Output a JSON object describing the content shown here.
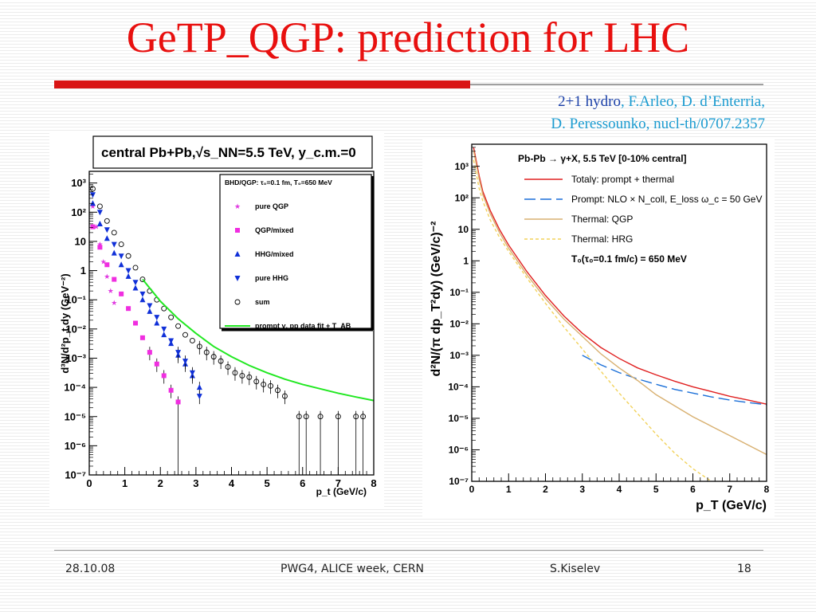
{
  "slide": {
    "title": "GeTP_QGP: prediction for LHC",
    "citation_line1_a": "2+1 hydro",
    "citation_line1_b": ", F.Arleo, D. d’Enterria,",
    "citation_line2": "D. Peressounko, nucl-th/0707.2357"
  },
  "footer": {
    "date": "28.10.08",
    "event": "PWG4, ALICE week, CERN",
    "author": "S.Kiselev",
    "page": "18"
  },
  "chart_data": [
    {
      "type": "scatter",
      "title": "central Pb+Pb,√s_NN=5.5 TeV, y_c.m.=0",
      "xlabel": "p_t (GeV/c)",
      "ylabel": "d³N/d²p_t dy (GeV⁻²)",
      "x_ticks": [
        "0",
        "1",
        "2",
        "3",
        "4",
        "5",
        "6",
        "7",
        "8"
      ],
      "y_ticks": [
        "10⁻⁷",
        "10⁻⁶",
        "10⁻⁵",
        "10⁻⁴",
        "10⁻³",
        "10⁻²",
        "10⁻¹",
        "1",
        "10",
        "10²",
        "10³"
      ],
      "xlim": [
        0,
        8
      ],
      "ylim_log10": [
        -7,
        3.4
      ],
      "yscale": "log",
      "legend_position": "top-right",
      "legend_header": "BHD/QGP: τ₀=0.1 fm, T₀=650 MeV",
      "colors": {
        "pure_qgp": "#e03ae0",
        "qgp_mixed": "#f02ee0",
        "hhg_mixed": "#1030d8",
        "pure_hhg": "#1030d8",
        "sum": "#000000",
        "prompt": "#22e822"
      },
      "series": [
        {
          "name": "pure QGP",
          "marker": "star",
          "x": [
            0.1,
            0.2,
            0.3,
            0.4,
            0.5,
            0.6,
            0.7
          ],
          "log10y": [
            2.2,
            1.5,
            0.9,
            0.3,
            -0.2,
            -0.7,
            -1.1
          ]
        },
        {
          "name": "QGP/mixed",
          "marker": "square",
          "x": [
            0.1,
            0.3,
            0.5,
            0.7,
            0.9,
            1.1,
            1.3,
            1.5,
            1.7,
            1.9,
            2.1,
            2.3,
            2.5
          ],
          "log10y": [
            1.5,
            0.8,
            0.2,
            -0.3,
            -0.8,
            -1.3,
            -1.8,
            -2.3,
            -2.8,
            -3.2,
            -3.6,
            -4.1,
            -4.5
          ]
        },
        {
          "name": "HHG/mixed",
          "marker": "triangle-up",
          "x": [
            0.1,
            0.3,
            0.5,
            0.7,
            0.9,
            1.1,
            1.3,
            1.5,
            1.7,
            1.9,
            2.1,
            2.3,
            2.5,
            2.7,
            2.9,
            3.1
          ],
          "log10y": [
            2.3,
            1.6,
            1.1,
            0.6,
            0.2,
            -0.2,
            -0.6,
            -1.0,
            -1.4,
            -1.8,
            -2.2,
            -2.5,
            -2.9,
            -3.2,
            -3.6,
            -4.0
          ]
        },
        {
          "name": "pure HHG",
          "marker": "triangle-down",
          "x": [
            0.1,
            0.3,
            0.5,
            0.7,
            0.9,
            1.1,
            1.3,
            1.5,
            1.7,
            1.9,
            2.1,
            2.3,
            2.5,
            2.7,
            2.9,
            3.1
          ],
          "log10y": [
            2.6,
            2.0,
            1.4,
            0.9,
            0.5,
            0.0,
            -0.4,
            -0.8,
            -1.2,
            -1.6,
            -2.0,
            -2.4,
            -2.8,
            -3.1,
            -3.5,
            -4.3
          ]
        },
        {
          "name": "sum",
          "marker": "circle",
          "x": [
            0.1,
            0.3,
            0.5,
            0.7,
            0.9,
            1.1,
            1.3,
            1.5,
            1.7,
            1.9,
            2.1,
            2.3,
            2.5,
            2.7,
            2.9,
            3.1,
            3.3,
            3.5,
            3.7,
            3.9,
            4.1,
            4.3,
            4.5,
            4.7,
            4.9,
            5.1,
            5.3,
            5.5,
            5.9,
            6.1,
            6.5,
            7.0,
            7.5,
            7.7
          ],
          "log10y": [
            2.8,
            2.2,
            1.7,
            1.3,
            0.9,
            0.5,
            0.1,
            -0.3,
            -0.7,
            -1.0,
            -1.3,
            -1.6,
            -1.9,
            -2.2,
            -2.4,
            -2.6,
            -2.8,
            -2.95,
            -3.1,
            -3.3,
            -3.5,
            -3.6,
            -3.65,
            -3.8,
            -3.9,
            -3.95,
            -4.1,
            -4.3,
            -5.0,
            -5.0,
            -5.0,
            -5.0,
            -5.0,
            -5.0
          ]
        },
        {
          "name": "prompt γ, pp data fit + T_AB",
          "type": "line",
          "x": [
            1.5,
            2,
            2.5,
            3,
            3.5,
            4,
            4.5,
            5,
            5.5,
            6,
            6.5,
            7,
            7.5,
            8
          ],
          "log10y": [
            -0.3,
            -1.05,
            -1.65,
            -2.15,
            -2.6,
            -2.95,
            -3.25,
            -3.5,
            -3.72,
            -3.9,
            -4.05,
            -4.2,
            -4.33,
            -4.45
          ]
        }
      ]
    },
    {
      "type": "line",
      "title": "Pb-Pb → γ+X, 5.5 TeV  [0-10% central]",
      "xlabel": "p_T (GeV/c)",
      "ylabel": "d²N/(π dp_T²dy) (GeV/c)⁻²",
      "x_ticks": [
        "0",
        "1",
        "2",
        "3",
        "4",
        "5",
        "6",
        "7",
        "8"
      ],
      "y_ticks": [
        "10⁻⁷",
        "10⁻⁶",
        "10⁻⁵",
        "10⁻⁴",
        "10⁻³",
        "10⁻²",
        "10⁻¹",
        "1",
        "10",
        "10²",
        "10³"
      ],
      "xlim": [
        0,
        8
      ],
      "ylim_log10": [
        -7,
        3.7
      ],
      "yscale": "log",
      "legend_position": "top-right",
      "legend_note": "T₀(τ₀=0.1 fm/c) = 650 MeV",
      "series": [
        {
          "name": "Totalγ: prompt + thermal",
          "color": "#e02020",
          "dash": "solid",
          "x": [
            0.05,
            0.1,
            0.2,
            0.3,
            0.5,
            0.75,
            1,
            1.5,
            2,
            2.5,
            3,
            3.5,
            4,
            4.5,
            5,
            5.5,
            6,
            6.5,
            7,
            7.5,
            8
          ],
          "log10y": [
            3.6,
            3.3,
            2.7,
            2.2,
            1.6,
            1.0,
            0.5,
            -0.35,
            -1.1,
            -1.75,
            -2.3,
            -2.75,
            -3.1,
            -3.4,
            -3.62,
            -3.82,
            -4.0,
            -4.15,
            -4.3,
            -4.42,
            -4.55
          ]
        },
        {
          "name": "Prompt: NLO × N_coll, E_loss ω_c = 50 GeV",
          "color": "#1a6fd8",
          "dash": "long-dash",
          "x": [
            3,
            3.5,
            4,
            4.5,
            5,
            5.5,
            6,
            6.5,
            7,
            7.5,
            8
          ],
          "log10y": [
            -3.0,
            -3.3,
            -3.55,
            -3.75,
            -3.92,
            -4.08,
            -4.2,
            -4.32,
            -4.42,
            -4.5,
            -4.57
          ]
        },
        {
          "name": "Thermal: QGP",
          "color": "#d8b070",
          "dash": "solid",
          "x": [
            0.05,
            0.1,
            0.2,
            0.3,
            0.5,
            0.75,
            1,
            1.5,
            2,
            2.5,
            3,
            3.5,
            4,
            4.5,
            5,
            5.5,
            6,
            6.5,
            7,
            7.5,
            8
          ],
          "log10y": [
            3.5,
            3.2,
            2.6,
            2.1,
            1.5,
            0.9,
            0.4,
            -0.45,
            -1.2,
            -1.85,
            -2.4,
            -2.95,
            -3.4,
            -3.8,
            -4.25,
            -4.6,
            -4.95,
            -5.25,
            -5.55,
            -5.85,
            -6.15
          ]
        },
        {
          "name": "Thermal: HRG",
          "color": "#f2d25a",
          "dash": "dashed",
          "x": [
            0.05,
            0.1,
            0.2,
            0.3,
            0.5,
            0.75,
            1,
            1.5,
            2,
            2.5,
            3,
            3.5,
            4,
            4.5,
            5,
            5.5,
            6,
            6.5
          ],
          "log10y": [
            3.2,
            2.9,
            2.3,
            1.9,
            1.3,
            0.75,
            0.3,
            -0.55,
            -1.35,
            -2.1,
            -2.8,
            -3.5,
            -4.2,
            -4.85,
            -5.5,
            -6.1,
            -6.6,
            -7.0
          ]
        }
      ]
    }
  ]
}
